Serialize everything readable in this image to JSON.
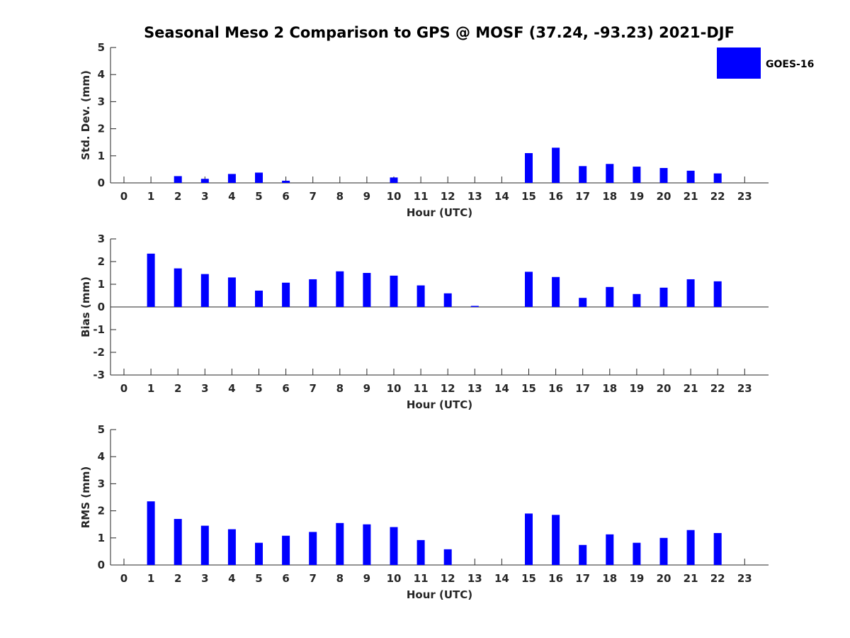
{
  "title": "Seasonal Meso 2 Comparison to GPS @ MOSF (37.24, -93.23) 2021-DJF",
  "legend": {
    "label": "GOES-16",
    "color": "#0000ff"
  },
  "chart_data": [
    {
      "type": "bar",
      "xlabel": "Hour (UTC)",
      "ylabel": "Std. Dev. (mm)",
      "ylim": [
        0,
        5
      ],
      "yticks": [
        0,
        1,
        2,
        3,
        4,
        5
      ],
      "categories": [
        "0",
        "1",
        "2",
        "3",
        "4",
        "5",
        "6",
        "7",
        "8",
        "9",
        "10",
        "11",
        "12",
        "13",
        "14",
        "15",
        "16",
        "17",
        "18",
        "19",
        "20",
        "21",
        "22",
        "23"
      ],
      "series": [
        {
          "name": "GOES-16",
          "values": [
            null,
            0,
            0.25,
            0.15,
            0.33,
            0.38,
            0.08,
            null,
            null,
            null,
            0.2,
            null,
            null,
            null,
            null,
            1.1,
            1.3,
            0.62,
            0.7,
            0.6,
            0.55,
            0.45,
            0.35,
            null
          ]
        }
      ]
    },
    {
      "type": "bar",
      "xlabel": "Hour (UTC)",
      "ylabel": "Bias (mm)",
      "ylim": [
        -3,
        3
      ],
      "yticks": [
        -3,
        -2,
        -1,
        0,
        1,
        2,
        3
      ],
      "categories": [
        "0",
        "1",
        "2",
        "3",
        "4",
        "5",
        "6",
        "7",
        "8",
        "9",
        "10",
        "11",
        "12",
        "13",
        "14",
        "15",
        "16",
        "17",
        "18",
        "19",
        "20",
        "21",
        "22",
        "23"
      ],
      "series": [
        {
          "name": "GOES-16",
          "values": [
            null,
            2.35,
            1.7,
            1.45,
            1.3,
            0.72,
            1.07,
            1.22,
            1.57,
            1.5,
            1.38,
            0.95,
            0.6,
            0.03,
            null,
            1.55,
            1.32,
            0.4,
            0.88,
            0.57,
            0.85,
            1.22,
            1.13,
            null
          ]
        }
      ]
    },
    {
      "type": "bar",
      "xlabel": "Hour (UTC)",
      "ylabel": "RMS (mm)",
      "ylim": [
        0,
        5
      ],
      "yticks": [
        0,
        1,
        2,
        3,
        4,
        5
      ],
      "categories": [
        "0",
        "1",
        "2",
        "3",
        "4",
        "5",
        "6",
        "7",
        "8",
        "9",
        "10",
        "11",
        "12",
        "13",
        "14",
        "15",
        "16",
        "17",
        "18",
        "19",
        "20",
        "21",
        "22",
        "23"
      ],
      "series": [
        {
          "name": "GOES-16",
          "values": [
            null,
            2.35,
            1.7,
            1.45,
            1.32,
            0.82,
            1.08,
            1.22,
            1.55,
            1.5,
            1.4,
            0.92,
            0.58,
            null,
            null,
            1.9,
            1.85,
            0.74,
            1.13,
            0.82,
            1.0,
            1.29,
            1.18,
            null
          ]
        }
      ]
    }
  ]
}
